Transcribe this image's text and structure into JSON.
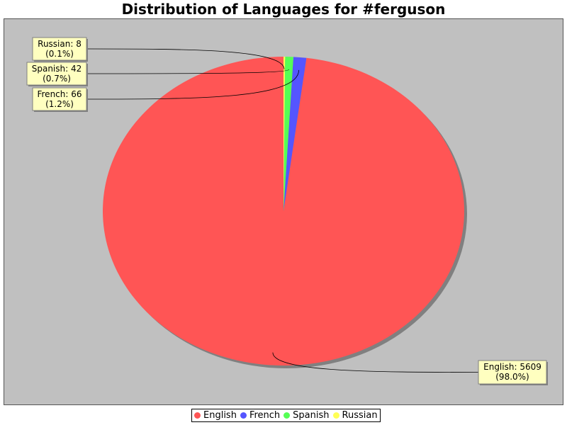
{
  "chart_data": {
    "type": "pie",
    "title": "Distribution of Languages for #ferguson",
    "slices": [
      {
        "label": "English",
        "value": 5609,
        "percent": "98.0%",
        "color": "#ff5555"
      },
      {
        "label": "French",
        "value": 66,
        "percent": "1.2%",
        "color": "#5555ff"
      },
      {
        "label": "Spanish",
        "value": 42,
        "percent": "0.7%",
        "color": "#55ff55"
      },
      {
        "label": "Russian",
        "value": 8,
        "percent": "0.1%",
        "color": "#ffff55"
      }
    ],
    "legend_position": "bottom",
    "background_color": "#c0c0c0",
    "label_box_color": "#ffffc0"
  }
}
